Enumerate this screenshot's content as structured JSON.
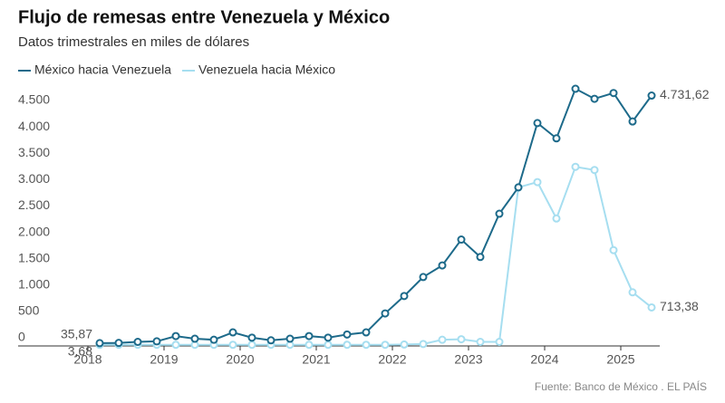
{
  "chart_data": {
    "type": "line",
    "title": "Flujo de remesas entre Venezuela y México",
    "subtitle": "Datos trimestrales en miles de dólares",
    "source": "Fuente: Banco de México . EL PAÍS",
    "categories": [
      "2018",
      null,
      null,
      null,
      "2019",
      null,
      null,
      null,
      "2020",
      null,
      null,
      null,
      "2021",
      null,
      null,
      null,
      "2022",
      null,
      null,
      null,
      "2023",
      null,
      null,
      null,
      "2024",
      null,
      null,
      null,
      "2025",
      null
    ],
    "series": [
      {
        "name": "México hacia Venezuela",
        "color": "#1d6a8a",
        "values": [
          35.87,
          40,
          60,
          70,
          170,
          120,
          100,
          240,
          140,
          90,
          120,
          170,
          140,
          200,
          240,
          600,
          930,
          1290,
          1510,
          2000,
          1670,
          2490,
          2990,
          4210,
          3920,
          4860,
          4670,
          4780,
          4240,
          4731.62
        ],
        "value_labels": [
          "35,87",
          null,
          null,
          null,
          null,
          null,
          null,
          null,
          null,
          null,
          null,
          null,
          null,
          null,
          null,
          null,
          null,
          null,
          null,
          null,
          null,
          null,
          null,
          null,
          null,
          null,
          null,
          null,
          null,
          "4.731,62"
        ]
      },
      {
        "name": "Venezuela hacia México",
        "color": "#a6def0",
        "values": [
          3.68,
          5,
          5,
          5,
          5,
          5,
          5,
          5,
          5,
          5,
          5,
          5,
          5,
          5,
          5,
          5,
          10,
          20,
          100,
          110,
          60,
          60,
          2990,
          3090,
          2400,
          3380,
          3320,
          1800,
          1000,
          713.38
        ],
        "value_labels": [
          "3,68",
          null,
          null,
          null,
          null,
          null,
          null,
          null,
          null,
          null,
          null,
          null,
          null,
          null,
          null,
          null,
          null,
          null,
          null,
          null,
          null,
          null,
          null,
          null,
          null,
          null,
          null,
          null,
          null,
          "713,38"
        ]
      }
    ],
    "ylim": [
      0,
      4750
    ],
    "yticks": [
      0,
      500,
      {
        "value": 1000,
        "label": "1.000"
      },
      {
        "value": 1500,
        "label": "1.500"
      },
      {
        "value": 2000,
        "label": "2.000"
      },
      {
        "value": 2500,
        "label": "2.500"
      },
      {
        "value": 3000,
        "label": "3.000"
      },
      {
        "value": 3500,
        "label": "3.500"
      },
      {
        "value": 4000,
        "label": "4.000"
      },
      {
        "value": 4500,
        "label": "4.500"
      }
    ],
    "grid": false
  }
}
